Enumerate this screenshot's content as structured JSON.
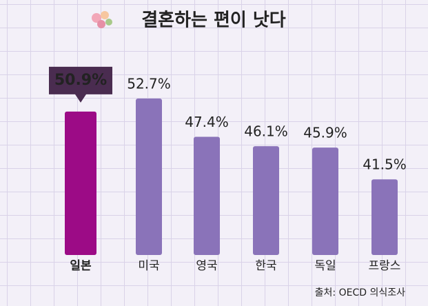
{
  "chart_data": {
    "type": "bar",
    "title": "결혼하는 편이 낫다",
    "categories": [
      "일본",
      "미국",
      "영국",
      "한국",
      "독일",
      "프랑스"
    ],
    "values": [
      50.9,
      52.7,
      47.4,
      46.1,
      45.9,
      41.5
    ],
    "value_labels": [
      "50.9%",
      "52.7%",
      "47.4%",
      "46.1%",
      "45.9%",
      "41.5%"
    ],
    "color": "#8a73b9",
    "highlight": 0,
    "highlight_color": "#9c0b86",
    "ylim": [
      31,
      55
    ],
    "source": "출처: OECD 의식조사"
  }
}
